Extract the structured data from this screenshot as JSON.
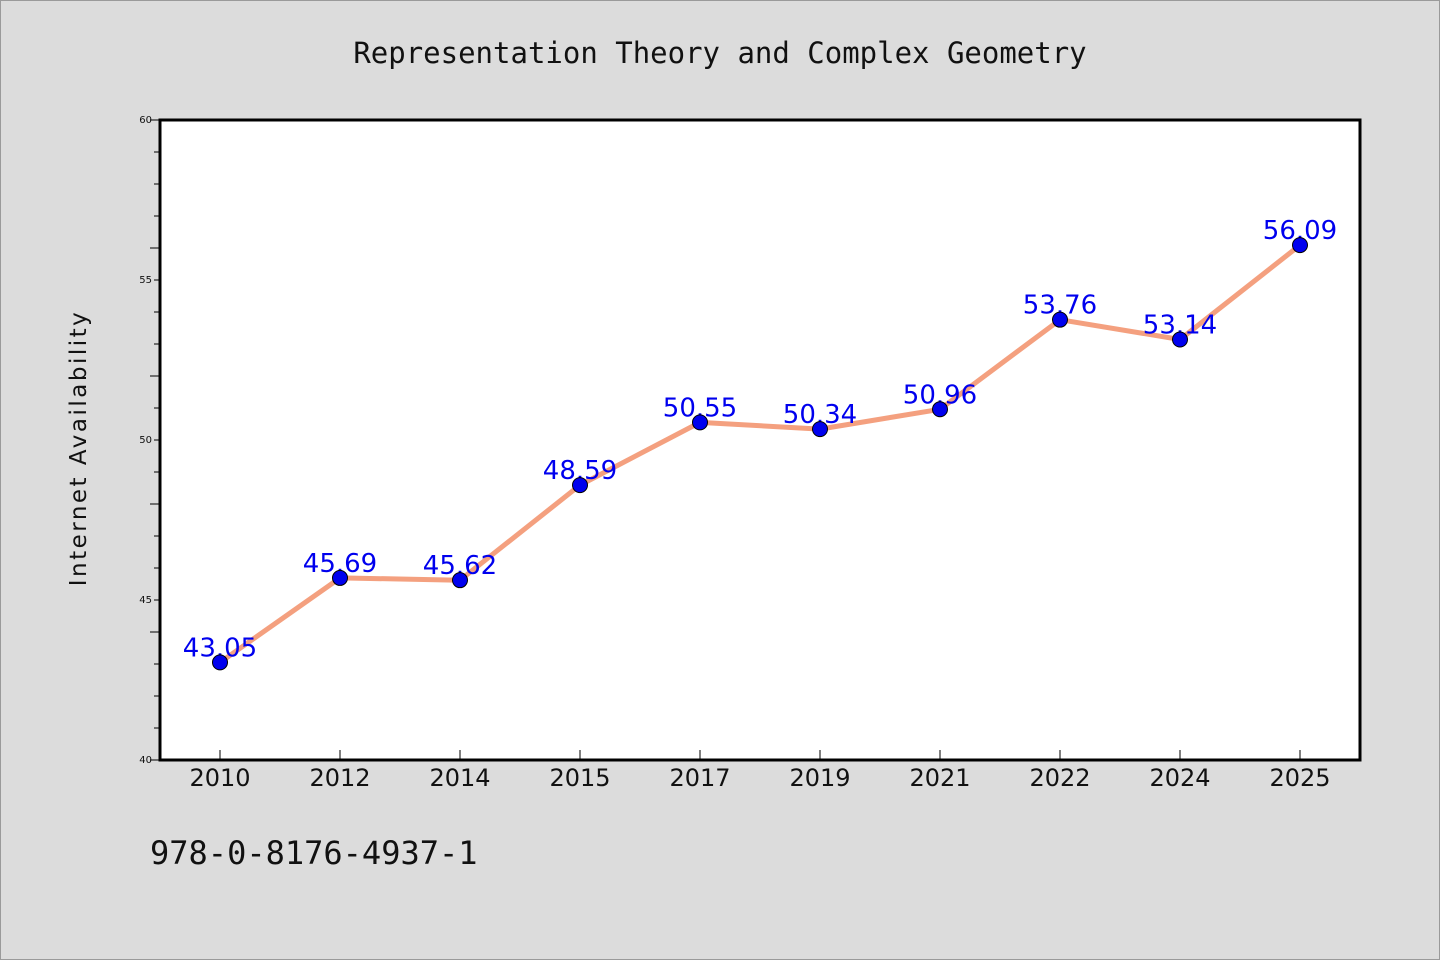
{
  "chart_data": {
    "type": "line",
    "title": "Representation Theory and Complex Geometry",
    "ylabel": "Internet Availability",
    "xlabel": "",
    "ylim": [
      40,
      60
    ],
    "y_ticks": [
      "40",
      "45",
      "50",
      "55",
      "60"
    ],
    "categories": [
      "2010",
      "2012",
      "2014",
      "2015",
      "2017",
      "2019",
      "2021",
      "2022",
      "2024",
      "2025"
    ],
    "values": [
      43.05,
      45.69,
      45.62,
      48.59,
      50.55,
      50.34,
      50.96,
      53.76,
      53.14,
      56.09
    ],
    "data_labels": [
      "43.05",
      "45.69",
      "45.62",
      "48.59",
      "50.55",
      "50.34",
      "50.96",
      "53.76",
      "53.14",
      "56.09"
    ],
    "grid": false,
    "legend": "none",
    "colors": {
      "line": "#f4a07f",
      "marker": "#0000ee",
      "label": "#0000ee",
      "background": "#dcdcdc",
      "plot_area": "#ffffff"
    }
  },
  "footer": {
    "isbn": "978-0-8176-4937-1"
  }
}
